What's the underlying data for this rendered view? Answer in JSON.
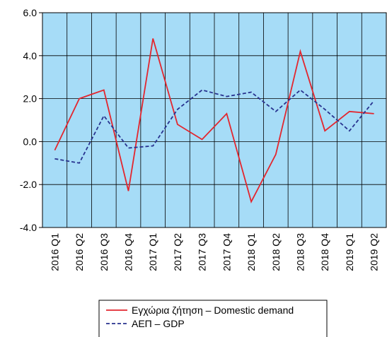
{
  "chart_data": {
    "type": "line",
    "categories": [
      "2016 Q1",
      "2016 Q2",
      "2016 Q3",
      "2016 Q4",
      "2017 Q1",
      "2017 Q2",
      "2017 Q3",
      "2017 Q4",
      "2018 Q1",
      "2018 Q2",
      "2018 Q3",
      "2018 Q4",
      "2019 Q1",
      "2019 Q2"
    ],
    "series": [
      {
        "name": "Εγχώρια ζήτηση – Domestic demand",
        "color": "#e3262e",
        "line_style": "solid",
        "values": [
          -0.4,
          2.0,
          2.4,
          -2.3,
          4.8,
          0.8,
          0.1,
          1.3,
          -2.8,
          -0.6,
          4.2,
          0.5,
          1.4,
          1.3
        ]
      },
      {
        "name": "ΑΕΠ – GDP",
        "color": "#28338f",
        "line_style": "dashed",
        "values": [
          -0.8,
          -1.0,
          1.2,
          -0.3,
          -0.2,
          1.5,
          2.4,
          2.1,
          2.3,
          1.4,
          2.4,
          1.5,
          0.5,
          1.9
        ]
      }
    ],
    "ylim": [
      -4,
      6
    ],
    "yticks": [
      {
        "value": -4,
        "label": "-4.0"
      },
      {
        "value": -2,
        "label": "-2.0"
      },
      {
        "value": 0,
        "label": "0.0"
      },
      {
        "value": 2,
        "label": "2.0"
      },
      {
        "value": 4,
        "label": "4.0"
      },
      {
        "value": 6,
        "label": "6.0"
      }
    ],
    "grid": true,
    "plot_background": "#a6dcf7",
    "legend": "bottom"
  }
}
